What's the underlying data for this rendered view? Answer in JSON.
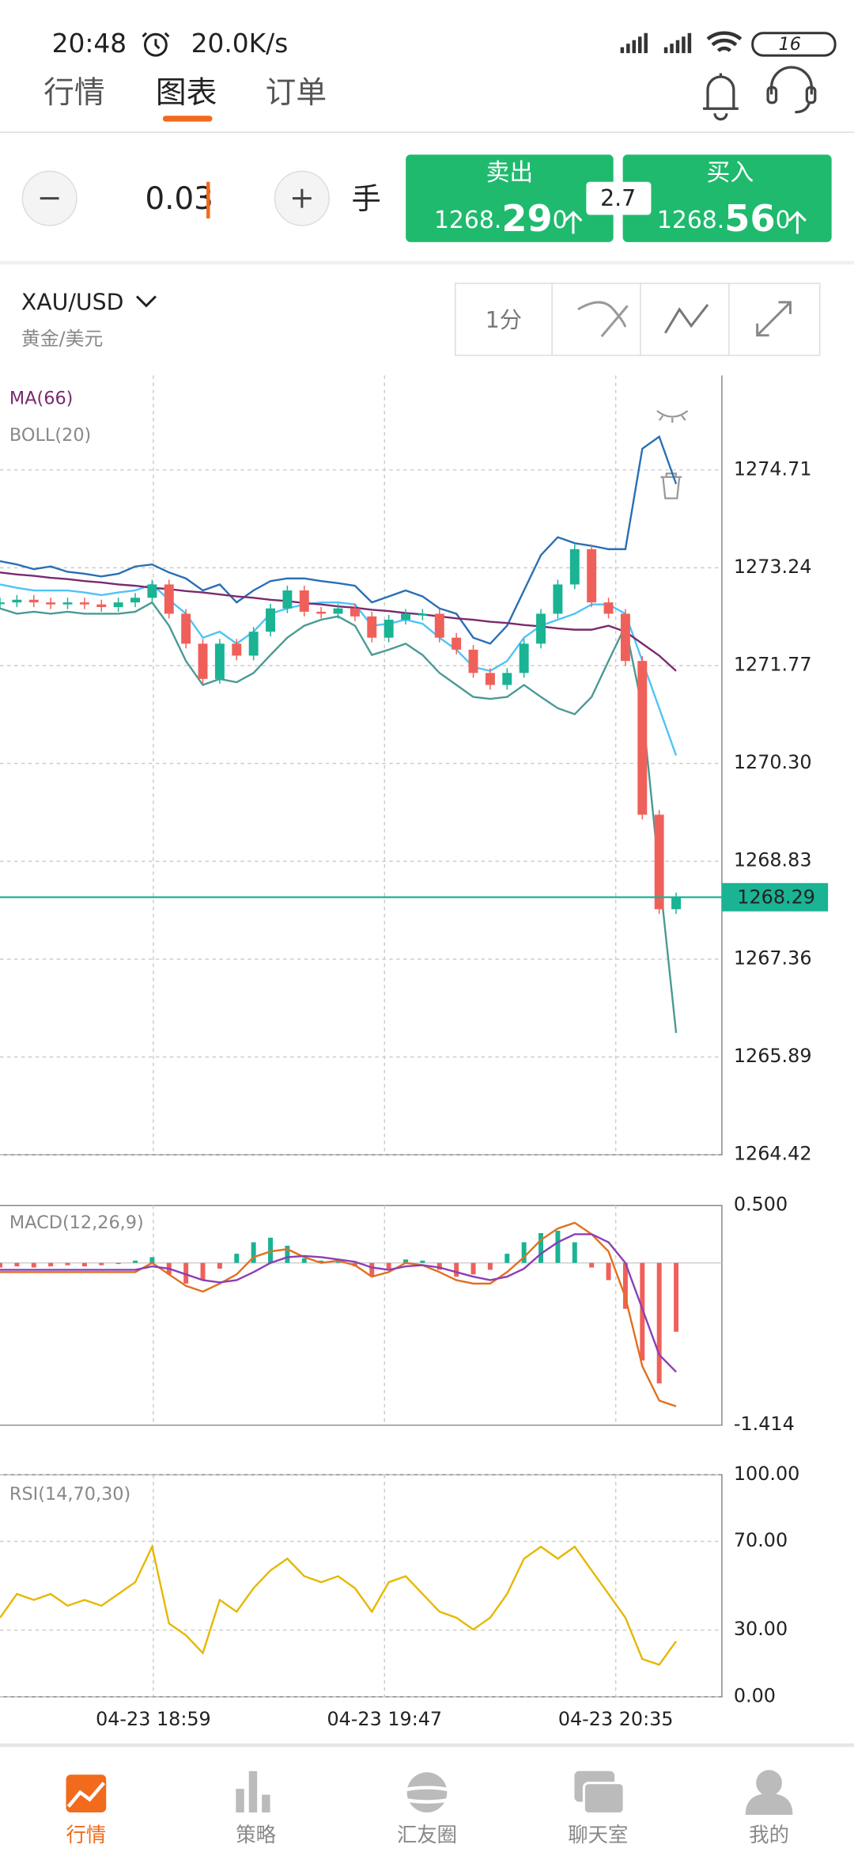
{
  "status_bar": {
    "time": "20:48",
    "speed": "20.0K/s",
    "battery": "16"
  },
  "tabs": [
    "行情",
    "图表",
    "订单"
  ],
  "trade": {
    "lot": "0.03",
    "unit": "手",
    "spread": "2.7",
    "sell": {
      "label": "卖出",
      "price_main": "1268.",
      "price_big": "29",
      "price_small": "0"
    },
    "buy": {
      "label": "买入",
      "price_main": "1268.",
      "price_big": "56",
      "price_small": "0"
    }
  },
  "symbol": {
    "code": "XAU/USD",
    "name": "黄金/美元"
  },
  "tools": {
    "interval": "1分"
  },
  "chart_data": [
    {
      "type": "candlestick",
      "ma_label": "MA(66)",
      "boll_label": "BOLL(20)",
      "x_labels": [
        "04-23 18:59",
        "04-23 19:47",
        "04-23 20:35"
      ],
      "ylim": [
        1264.42,
        1276.13
      ],
      "yticks": [
        1274.71,
        1273.24,
        1271.77,
        {
          "value": 1270.3,
          "label": "1270.30"
        },
        1268.83,
        1267.36,
        1265.89,
        1264.42
      ],
      "current_price": 1268.29,
      "up_color": "#1ab394",
      "down_color": "#f0605a",
      "ma_color": "#7b2a6e",
      "boll_colors": [
        "#2a6fb5",
        "#4fc3f7",
        "#4a9a94"
      ],
      "price_line_color": "#1ab394",
      "close": [
        1272.72,
        1272.76,
        1272.72,
        1272.69,
        1272.72,
        1272.69,
        1272.65,
        1272.72,
        1272.79,
        1272.99,
        1272.55,
        1272.1,
        1271.57,
        1272.1,
        1271.92,
        1272.28,
        1272.63,
        1272.9,
        1272.58,
        1272.55,
        1272.63,
        1272.51,
        1272.19,
        1272.46,
        1272.55,
        1272.55,
        1272.19,
        1272.01,
        1271.66,
        1271.48,
        1271.66,
        1272.1,
        1272.55,
        1272.99,
        1273.52,
        1272.72,
        1272.55,
        1271.84,
        1269.53,
        1268.11,
        1268.29
      ],
      "ma": [
        1273.17,
        1273.14,
        1273.12,
        1273.09,
        1273.07,
        1273.04,
        1273.02,
        1272.99,
        1272.97,
        1272.94,
        1272.92,
        1272.89,
        1272.87,
        1272.84,
        1272.81,
        1272.79,
        1272.76,
        1272.74,
        1272.71,
        1272.69,
        1272.66,
        1272.64,
        1272.61,
        1272.59,
        1272.56,
        1272.54,
        1272.51,
        1272.48,
        1272.46,
        1272.43,
        1272.41,
        1272.38,
        1272.36,
        1272.33,
        1272.31,
        1272.31,
        1272.37,
        1272.28,
        1272.1,
        1271.92,
        1271.69
      ],
      "boll_upper": [
        1273.34,
        1273.29,
        1273.22,
        1273.26,
        1273.18,
        1273.15,
        1273.11,
        1273.15,
        1273.26,
        1273.29,
        1273.17,
        1273.08,
        1272.9,
        1272.99,
        1272.72,
        1272.9,
        1273.04,
        1273.08,
        1273.08,
        1273.04,
        1273.01,
        1272.97,
        1272.72,
        1272.81,
        1272.9,
        1272.81,
        1272.63,
        1272.55,
        1272.19,
        1272.1,
        1272.37,
        1272.9,
        1273.43,
        1273.7,
        1273.61,
        1273.57,
        1273.52,
        1273.52,
        1275.03,
        1275.21,
        1274.5
      ],
      "boll_mid": [
        1272.99,
        1272.94,
        1272.9,
        1272.9,
        1272.9,
        1272.87,
        1272.83,
        1272.87,
        1272.9,
        1272.99,
        1272.76,
        1272.55,
        1272.19,
        1272.28,
        1272.1,
        1272.28,
        1272.55,
        1272.63,
        1272.69,
        1272.72,
        1272.72,
        1272.69,
        1272.37,
        1272.4,
        1272.46,
        1272.4,
        1272.19,
        1272.01,
        1271.75,
        1271.69,
        1271.84,
        1272.19,
        1272.37,
        1272.46,
        1272.55,
        1272.69,
        1272.69,
        1272.55,
        1271.84,
        1271.13,
        1270.42
      ],
      "boll_lower": [
        1272.63,
        1272.55,
        1272.58,
        1272.55,
        1272.58,
        1272.55,
        1272.55,
        1272.55,
        1272.58,
        1272.72,
        1272.37,
        1271.84,
        1271.48,
        1271.57,
        1271.52,
        1271.66,
        1271.93,
        1272.19,
        1272.37,
        1272.46,
        1272.51,
        1272.37,
        1271.93,
        1272.01,
        1272.1,
        1271.93,
        1271.66,
        1271.48,
        1271.3,
        1271.27,
        1271.3,
        1271.48,
        1271.3,
        1271.13,
        1271.04,
        1271.3,
        1271.84,
        1272.37,
        1271.13,
        1268.64,
        1266.25
      ]
    },
    {
      "type": "bar",
      "label": "MACD(12,26,9)",
      "ylim": [
        -1.414,
        0.5
      ],
      "yticks": [
        {
          "value": 0.5,
          "label": "0.500"
        },
        -1.414
      ],
      "up_color": "#1ab394",
      "down_color": "#f0605a",
      "dif_color": "#e07020",
      "dea_color": "#8b3fb5",
      "hist": [
        -0.04,
        -0.03,
        -0.04,
        -0.03,
        -0.02,
        -0.03,
        -0.02,
        -0.01,
        0.02,
        0.05,
        -0.1,
        -0.18,
        -0.15,
        -0.05,
        0.08,
        0.18,
        0.22,
        0.15,
        0.04,
        0.02,
        0.01,
        -0.03,
        -0.12,
        -0.05,
        0.03,
        0.02,
        -0.06,
        -0.12,
        -0.1,
        -0.06,
        0.08,
        0.18,
        0.26,
        0.28,
        0.18,
        -0.04,
        -0.15,
        -0.4,
        -0.85,
        -1.05,
        -0.6
      ],
      "dif": [
        -0.08,
        -0.08,
        -0.08,
        -0.08,
        -0.08,
        -0.08,
        -0.08,
        -0.08,
        -0.08,
        0.0,
        -0.1,
        -0.2,
        -0.25,
        -0.18,
        -0.1,
        0.05,
        0.1,
        0.12,
        0.05,
        0.0,
        0.02,
        -0.02,
        -0.12,
        -0.08,
        0.0,
        -0.02,
        -0.08,
        -0.15,
        -0.18,
        -0.18,
        -0.08,
        0.05,
        0.2,
        0.3,
        0.35,
        0.25,
        0.1,
        -0.3,
        -0.9,
        -1.2,
        -1.25
      ],
      "dea": [
        -0.06,
        -0.06,
        -0.06,
        -0.06,
        -0.06,
        -0.06,
        -0.06,
        -0.06,
        -0.06,
        -0.03,
        -0.05,
        -0.1,
        -0.15,
        -0.17,
        -0.15,
        -0.08,
        0.0,
        0.05,
        0.06,
        0.05,
        0.03,
        0.01,
        -0.04,
        -0.06,
        -0.03,
        -0.02,
        -0.04,
        -0.08,
        -0.12,
        -0.15,
        -0.12,
        -0.05,
        0.08,
        0.18,
        0.25,
        0.25,
        0.18,
        0.0,
        -0.4,
        -0.8,
        -0.95
      ]
    },
    {
      "type": "line",
      "label": "RSI(14,70,30)",
      "ylim": [
        0,
        100
      ],
      "yticks": [
        {
          "value": 100,
          "label": "100.00"
        },
        {
          "value": 70,
          "label": "70.00"
        },
        {
          "value": 30,
          "label": "30.00"
        },
        {
          "value": 0,
          "label": "0.00"
        }
      ],
      "color": "#e6b800",
      "values": [
        35.6,
        46.3,
        43.6,
        46.3,
        41.0,
        43.6,
        41.0,
        46.3,
        51.6,
        67.6,
        33.0,
        27.7,
        19.7,
        43.6,
        38.3,
        48.9,
        56.9,
        62.2,
        54.3,
        51.6,
        54.3,
        48.9,
        38.3,
        51.6,
        54.3,
        46.3,
        38.3,
        35.6,
        30.3,
        35.6,
        46.3,
        62.2,
        67.6,
        62.2,
        67.6,
        56.9,
        46.3,
        35.6,
        17.0,
        14.4,
        25.0
      ]
    }
  ],
  "nav": [
    "行情",
    "策略",
    "汇友圈",
    "聊天室",
    "我的"
  ]
}
